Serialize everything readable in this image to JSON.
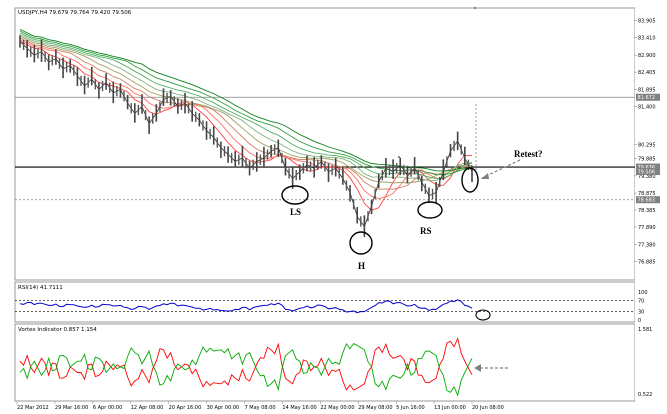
{
  "header": {
    "main_title": "USDJPY,H4  79.679 79.764 79.420 79.506",
    "rsi_title": "RSI(14) 41.7111",
    "vortex_title": "Vortex Indicator 0.857 1.154"
  },
  "chart_data": [
    {
      "type": "line",
      "panel": "price",
      "title": "USDJPY,H4  79.679 79.764 79.420 79.506",
      "xlabel": "",
      "ylabel": "",
      "ylim": [
        76.4,
        84.1
      ],
      "y_ticks": [
        "83.905",
        "83.410",
        "82.900",
        "82.405",
        "81.895",
        "81.400",
        "80.295",
        "79.885",
        "79.380",
        "78.875",
        "78.385",
        "77.890",
        "77.380",
        "76.885"
      ],
      "x_ticks": [
        "22 Mar 2012",
        "29 Mar 16:00",
        "6 Apr 00:00",
        "12 Apr 08:00",
        "20 Apr 16:00",
        "30 Apr 00:00",
        "7 May 08:00",
        "14 May 16:00",
        "22 May 00:00",
        "29 May 08:00",
        "5 Jun 16:00",
        "13 Jun 00:00",
        "20 Jun 08:00"
      ],
      "price_labels": [
        {
          "value": 81.672,
          "text": "81.672"
        },
        {
          "value": 79.636,
          "text": "79.636"
        },
        {
          "value": 79.506,
          "text": "79.506"
        },
        {
          "value": 78.683,
          "text": "78.683"
        }
      ],
      "horizontal_lines": [
        81.672,
        79.636,
        78.683
      ],
      "series": [
        {
          "values": [
            83.3,
            83.1,
            82.9,
            83.0,
            82.7,
            82.8,
            82.5,
            82.6,
            82.3,
            82.0,
            82.2,
            81.9,
            82.1,
            81.8,
            81.9,
            81.5,
            81.2,
            81.4,
            80.9,
            81.2,
            81.6,
            81.7,
            81.4,
            81.5,
            81.2,
            81.0,
            80.7,
            80.5,
            80.2,
            80.0,
            79.8,
            79.9,
            79.6,
            79.8,
            79.9,
            80.1,
            80.2,
            79.6,
            79.3,
            79.5,
            79.7,
            79.6,
            79.8,
            79.5,
            79.6,
            79.3,
            78.9,
            78.2,
            77.9,
            78.5,
            79.2,
            79.6,
            79.5,
            79.7,
            79.4,
            79.6,
            79.2,
            78.8,
            78.9,
            79.5,
            80.1,
            80.4,
            79.9,
            79.5
          ]
        }
      ]
    },
    {
      "type": "line",
      "panel": "rsi",
      "title": "RSI(14) 41.7111",
      "ylim": [
        0,
        100
      ],
      "y_ticks": [
        "100",
        "70",
        "30",
        "0"
      ],
      "levels": [
        70,
        30
      ],
      "series": [
        {
          "values": [
            58,
            62,
            55,
            60,
            52,
            57,
            48,
            55,
            50,
            45,
            53,
            48,
            55,
            50,
            52,
            44,
            40,
            48,
            38,
            50,
            58,
            60,
            50,
            52,
            46,
            42,
            38,
            36,
            34,
            32,
            38,
            45,
            36,
            48,
            52,
            58,
            60,
            38,
            32,
            42,
            50,
            46,
            52,
            40,
            44,
            36,
            30,
            26,
            30,
            45,
            62,
            68,
            58,
            62,
            50,
            56,
            42,
            34,
            38,
            56,
            68,
            72,
            52,
            42
          ]
        }
      ]
    },
    {
      "type": "line",
      "panel": "vortex",
      "title": "Vortex Indicator 0.857 1.154",
      "y_ticks": [
        "1.581",
        "0.522"
      ],
      "series": [
        {
          "values": [
            1.1,
            1.2,
            0.9,
            1.15,
            0.85,
            1.05,
            0.8,
            1.0,
            0.9,
            0.78,
            1.05,
            0.85,
            1.1,
            0.95,
            1.0,
            0.82,
            0.75,
            0.95,
            0.72,
            1.1,
            1.3,
            1.25,
            0.95,
            1.05,
            0.88,
            0.8,
            0.74,
            0.72,
            0.7,
            0.68,
            0.8,
            0.95,
            0.75,
            1.05,
            1.15,
            1.3,
            1.4,
            0.8,
            0.7,
            0.9,
            1.1,
            1.0,
            1.15,
            0.85,
            0.92,
            0.75,
            0.68,
            0.62,
            0.7,
            1.0,
            1.35,
            1.4,
            1.15,
            1.2,
            0.95,
            1.1,
            0.85,
            0.72,
            0.8,
            1.15,
            1.45,
            1.5,
            1.1,
            0.86
          ]
        },
        {
          "values": [
            0.9,
            0.8,
            1.1,
            0.85,
            1.15,
            0.95,
            1.2,
            1.0,
            1.1,
            1.22,
            0.95,
            1.15,
            0.9,
            1.05,
            1.0,
            1.18,
            1.25,
            1.05,
            1.28,
            0.9,
            0.7,
            0.75,
            1.05,
            0.95,
            1.12,
            1.2,
            1.26,
            1.28,
            1.3,
            1.32,
            1.2,
            1.05,
            1.25,
            0.95,
            0.85,
            0.7,
            0.6,
            1.2,
            1.3,
            1.1,
            0.9,
            1.0,
            0.85,
            1.15,
            1.08,
            1.25,
            1.32,
            1.38,
            1.3,
            1.0,
            0.65,
            0.6,
            0.85,
            0.8,
            1.05,
            0.9,
            1.15,
            1.28,
            1.2,
            0.85,
            0.55,
            0.5,
            0.9,
            1.15
          ]
        }
      ]
    }
  ],
  "annotations": {
    "ls": "LS",
    "h": "H",
    "rs": "RS",
    "retest": "Retest?"
  },
  "colors": {
    "price": "#333333",
    "rsi": "#0000cc",
    "vortex_plus": "#00aa00",
    "vortex_minus": "#ff0000",
    "grid": "#808080"
  }
}
